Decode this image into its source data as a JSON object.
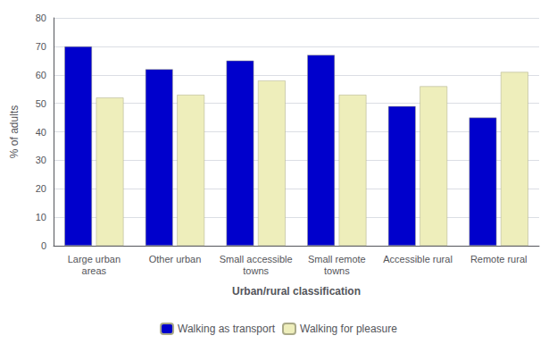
{
  "chart_data": {
    "type": "bar",
    "categories": [
      "Large urban\nareas",
      "Other urban",
      "Small accessible\ntowns",
      "Small remote\ntowns",
      "Accessible rural",
      "Remote rural"
    ],
    "series": [
      {
        "name": "Walking as transport",
        "color": "#0000cc",
        "values": [
          70,
          62,
          65,
          67,
          49,
          45
        ]
      },
      {
        "name": "Walking for pleasure",
        "color": "#eeeebb",
        "values": [
          52,
          53,
          58,
          53,
          56,
          61
        ]
      }
    ],
    "xlabel": "Urban/rural classification",
    "ylabel": "% of adults",
    "ylim": [
      0,
      80
    ],
    "yticks": [
      0,
      10,
      20,
      30,
      40,
      50,
      60,
      70,
      80
    ],
    "grid": true,
    "legend": "bottom"
  }
}
